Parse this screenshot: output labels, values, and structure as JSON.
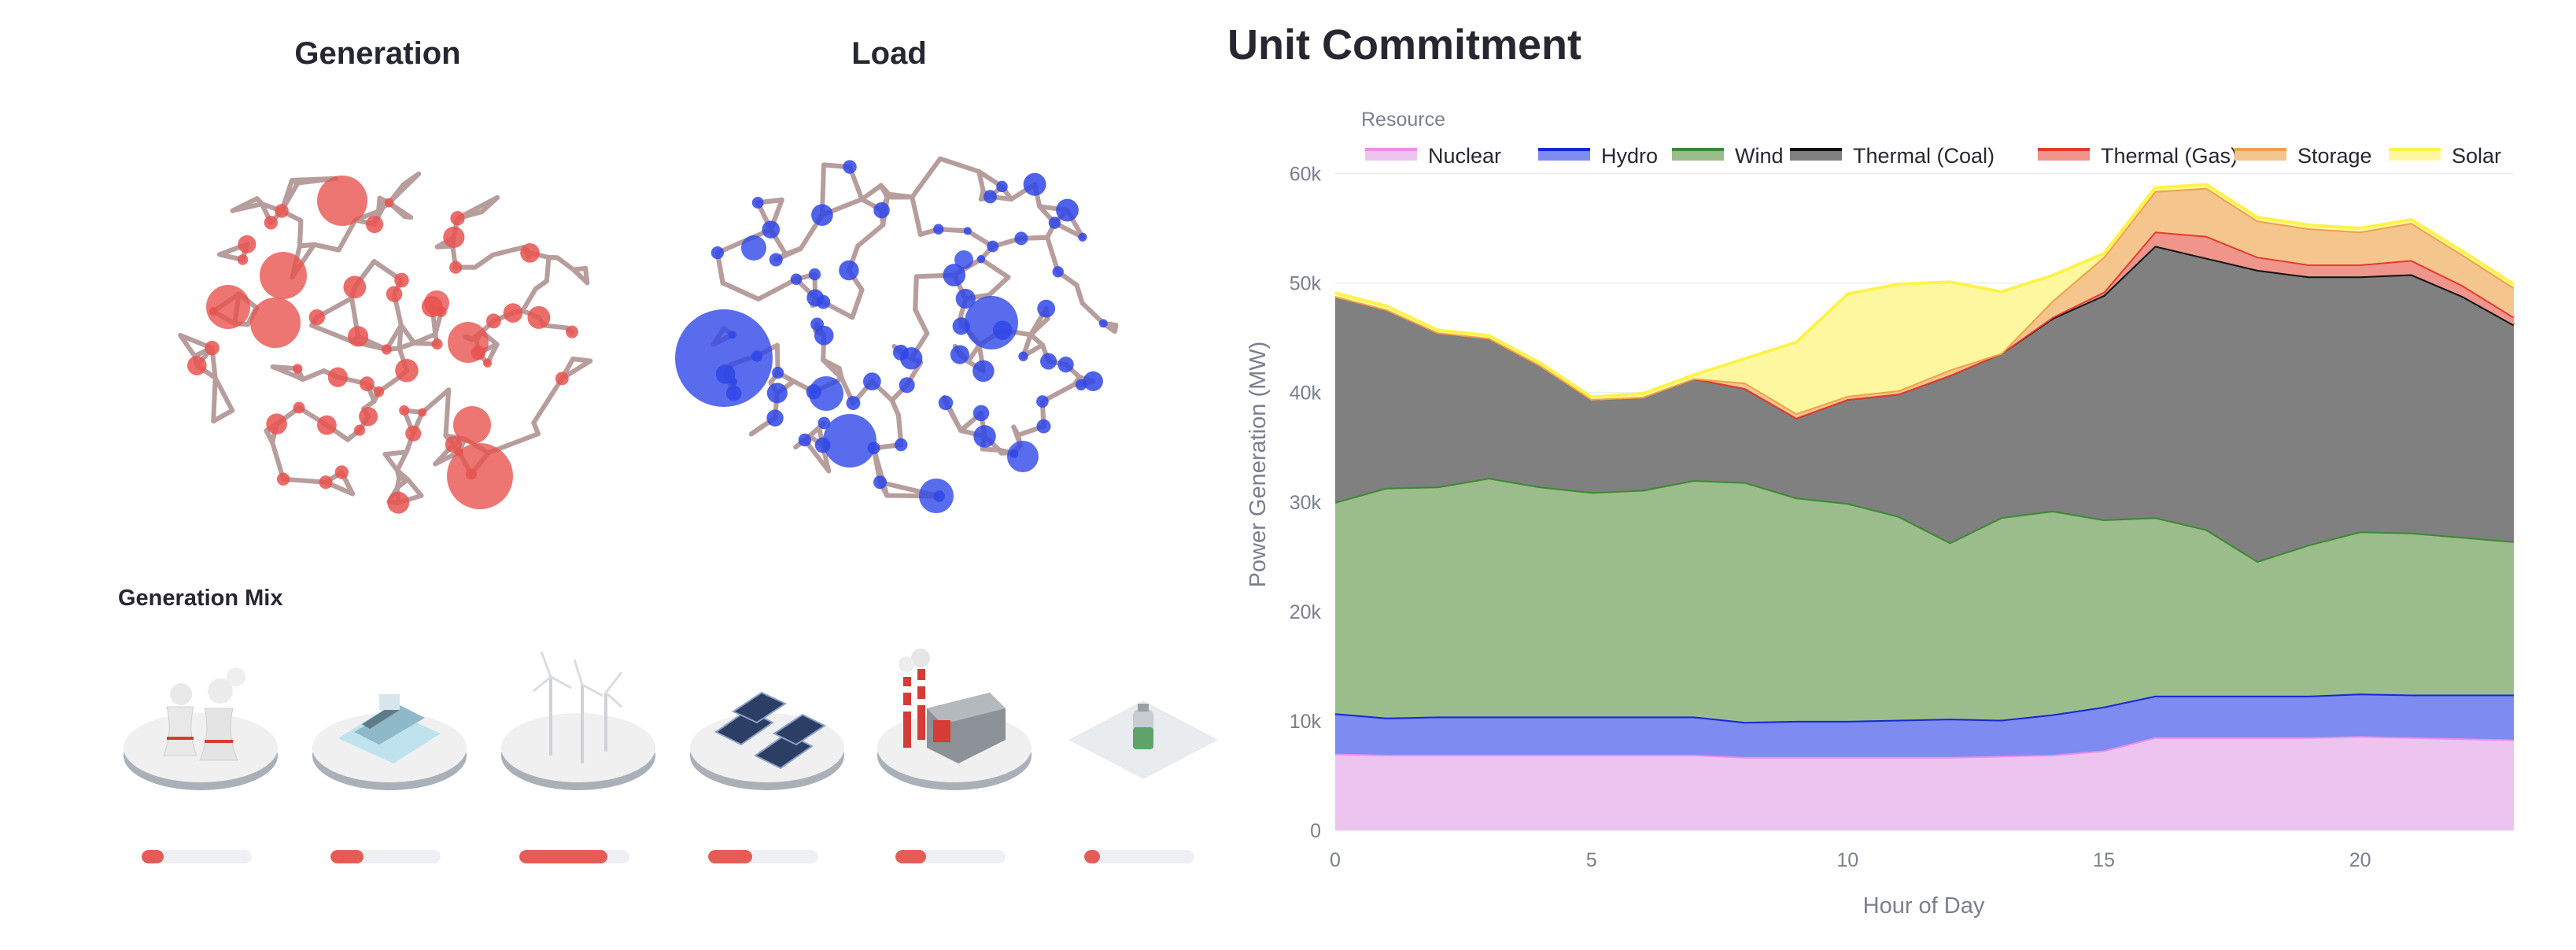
{
  "titles": {
    "generation": "Generation",
    "load": "Load",
    "unit_commitment": "Unit Commitment",
    "generation_mix": "Generation Mix"
  },
  "generation_mix": [
    {
      "icon": "nuclear-plant-icon",
      "level": 0.2
    },
    {
      "icon": "hydro-dam-icon",
      "level": 0.3
    },
    {
      "icon": "wind-turbine-icon",
      "level": 0.8
    },
    {
      "icon": "solar-panel-icon",
      "level": 0.4
    },
    {
      "icon": "thermal-factory-icon",
      "level": 0.28
    },
    {
      "icon": "battery-storage-icon",
      "level": 0.14
    }
  ],
  "colors": {
    "generation_node": "#e8534f",
    "load_node": "#2f47e8",
    "network_edge": "#b89d9d",
    "mix_bar": "#e55c56"
  },
  "chart_data": {
    "type": "area",
    "stacked": true,
    "title": "",
    "legend_title": "Resource",
    "legend_position": "top",
    "xlabel": "Hour of Day",
    "ylabel": "Power Generation (MW)",
    "xlim": [
      0,
      23
    ],
    "ylim": [
      0,
      65000
    ],
    "x_ticks": [
      0,
      5,
      10,
      15,
      20
    ],
    "y_ticks": [
      0,
      10000,
      20000,
      30000,
      40000,
      50000,
      60000
    ],
    "y_tick_labels": [
      "0",
      "10k",
      "20k",
      "30k",
      "40k",
      "50k",
      "60k"
    ],
    "x": [
      0,
      1,
      2,
      3,
      4,
      5,
      6,
      7,
      8,
      9,
      10,
      11,
      12,
      13,
      14,
      15,
      16,
      17,
      18,
      19,
      20,
      21,
      22,
      23
    ],
    "series": [
      {
        "name": "Nuclear",
        "fill": "#edc4ef",
        "line": "#ee8ee8",
        "values": [
          7000,
          6900,
          6900,
          6900,
          6900,
          6900,
          6900,
          6900,
          6700,
          6700,
          6700,
          6700,
          6700,
          6800,
          6900,
          7300,
          8500,
          8500,
          8500,
          8500,
          8600,
          8500,
          8400,
          8300
        ]
      },
      {
        "name": "Hydro",
        "fill": "#7e8bf0",
        "line": "#1428d8",
        "values": [
          3700,
          3400,
          3500,
          3500,
          3500,
          3500,
          3500,
          3500,
          3200,
          3300,
          3300,
          3400,
          3500,
          3300,
          3700,
          4000,
          3800,
          3800,
          3800,
          3800,
          3900,
          3900,
          4000,
          4100
        ]
      },
      {
        "name": "Wind",
        "fill": "#9bbd8b",
        "line": "#3a8a30",
        "values": [
          19300,
          21000,
          21000,
          21800,
          21000,
          20500,
          20700,
          21600,
          21900,
          20400,
          19900,
          18600,
          16100,
          18500,
          18600,
          17100,
          16300,
          15200,
          12300,
          13800,
          14800,
          14800,
          14400,
          14000
        ]
      },
      {
        "name": "Thermal (Coal)",
        "fill": "#808080",
        "line": "#111111",
        "values": [
          18800,
          16300,
          14100,
          12800,
          11100,
          8500,
          8500,
          9300,
          8600,
          7300,
          9500,
          11200,
          15300,
          15000,
          17600,
          20500,
          24800,
          24800,
          26600,
          24500,
          23300,
          23600,
          22000,
          19800
        ]
      },
      {
        "name": "Thermal (Gas)",
        "fill": "#f0958b",
        "line": "#e53a2e",
        "values": [
          0,
          0,
          0,
          0,
          0,
          0,
          0,
          0,
          0,
          0,
          0,
          0,
          0,
          0,
          100,
          300,
          1300,
          2000,
          1200,
          1100,
          1100,
          1300,
          1000,
          700
        ]
      },
      {
        "name": "Storage",
        "fill": "#f5c58e",
        "line": "#f0a04a",
        "values": [
          0,
          0,
          0,
          0,
          0,
          0,
          0,
          0,
          500,
          400,
          300,
          300,
          500,
          0,
          1500,
          3200,
          3700,
          4400,
          3300,
          3300,
          3000,
          3400,
          2800,
          2700
        ]
      },
      {
        "name": "Solar",
        "fill": "#fdf8a0",
        "line": "#fdf34a",
        "values": [
          300,
          300,
          200,
          200,
          200,
          200,
          300,
          300,
          2200,
          6500,
          9300,
          9700,
          8000,
          5600,
          2300,
          300,
          300,
          300,
          300,
          300,
          300,
          300,
          300,
          300
        ]
      }
    ]
  }
}
